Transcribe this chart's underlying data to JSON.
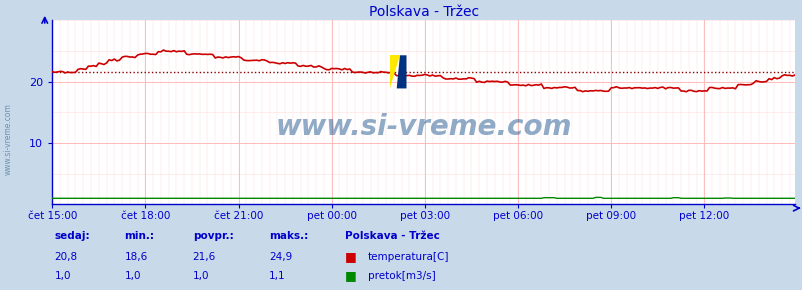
{
  "title": "Polskava - Tržec",
  "bg_color": "#c8daea",
  "plot_bg_color": "#ffffff",
  "x_labels": [
    "čet 15:00",
    "čet 18:00",
    "čet 21:00",
    "pet 00:00",
    "pet 03:00",
    "pet 06:00",
    "pet 09:00",
    "pet 12:00"
  ],
  "n_points": 288,
  "ylim": [
    0,
    30
  ],
  "avg_line_y": 21.6,
  "avg_line_color": "#880000",
  "temp_color": "#cc0000",
  "flow_color": "#008800",
  "watermark_text_color": "#336699",
  "watermark_alpha": 0.55,
  "title_color": "#0000cc",
  "axis_color": "#0000cc",
  "grid_color_major": "#ffbbbb",
  "grid_color_minor": "#ffdddd",
  "stats_color": "#0000cc",
  "sedaj": "20,8",
  "min_val": "18,6",
  "povpr": "21,6",
  "maks": "24,9",
  "legend_title": "Polskava - Tržec",
  "legend_temp": "temperatura[C]",
  "legend_flow": "pretok[m3/s]",
  "sedaj_flow": "1,0",
  "min_flow": "1,0",
  "povpr_flow": "1,0",
  "maks_flow": "1,1",
  "left_label_color": "#6688aa",
  "logo_yellow": "#FFE800",
  "logo_blue": "#0080FF",
  "logo_darkblue": "#003080"
}
